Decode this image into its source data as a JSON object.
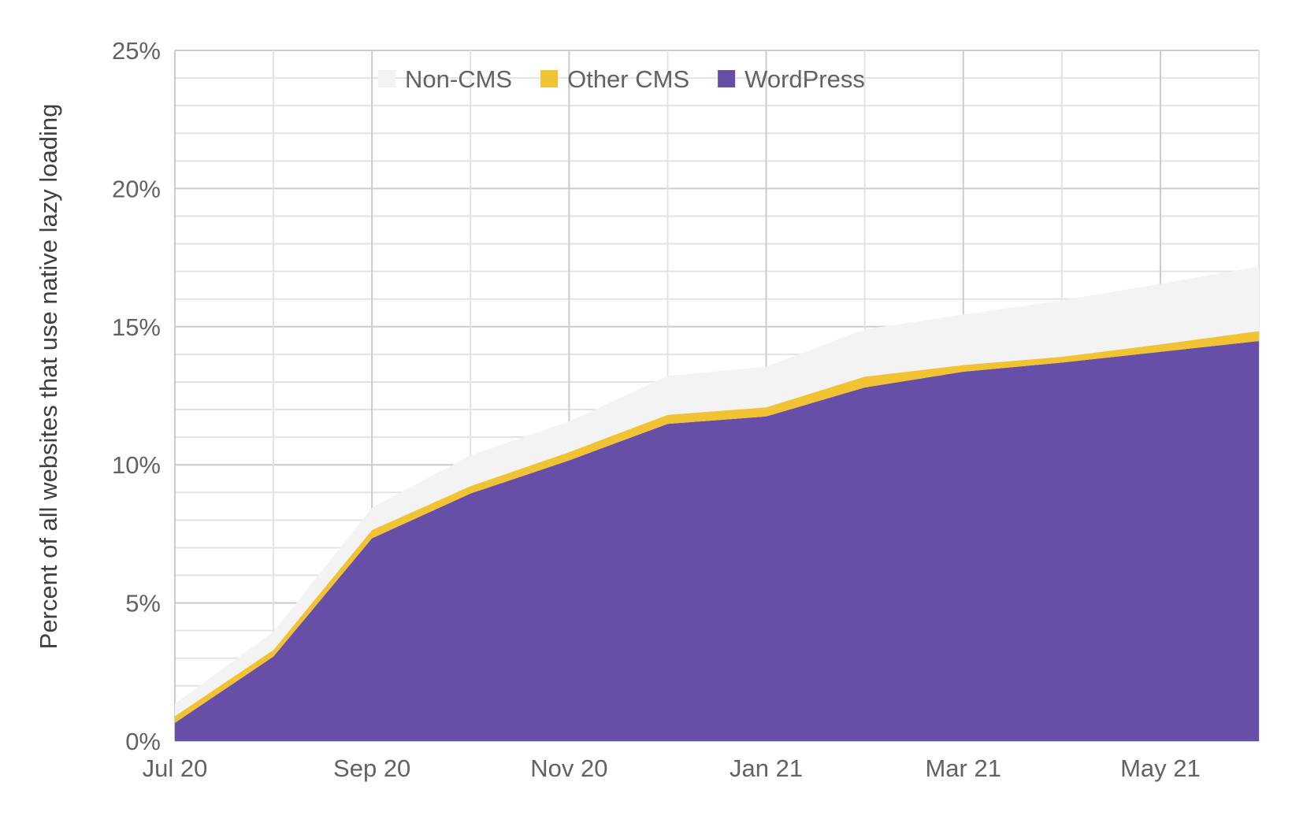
{
  "chart_data": {
    "type": "area",
    "stacked": true,
    "title": "",
    "xlabel": "",
    "ylabel": "Percent of all websites that use native lazy loading",
    "ylim": [
      0,
      25
    ],
    "y_ticks": [
      "0%",
      "5%",
      "10%",
      "15%",
      "20%",
      "25%"
    ],
    "x": [
      "Jul 20",
      "Aug 20",
      "Sep 20",
      "Oct 20",
      "Nov 20",
      "Dec 20",
      "Jan 21",
      "Feb 21",
      "Mar 21",
      "Apr 21",
      "May 21",
      "Jun 21"
    ],
    "x_tick_labels": [
      "Jul 20",
      "Sep 20",
      "Nov 20",
      "Jan 21",
      "Mar 21",
      "May 21"
    ],
    "grid": true,
    "legend_position": "top",
    "series": [
      {
        "name": "WordPress",
        "color": "#674ea7",
        "values": [
          0.66,
          3.06,
          7.34,
          8.96,
          10.16,
          11.48,
          11.75,
          12.8,
          13.37,
          13.7,
          14.09,
          14.48
        ]
      },
      {
        "name": "Other CMS",
        "color": "#f1c232",
        "values": [
          0.24,
          0.24,
          0.3,
          0.27,
          0.3,
          0.33,
          0.33,
          0.39,
          0.24,
          0.21,
          0.27,
          0.36
        ]
      },
      {
        "name": "Non-CMS",
        "color": "#f3f3f3",
        "values": [
          0.45,
          0.66,
          0.81,
          1.11,
          1.11,
          1.41,
          1.47,
          1.71,
          1.83,
          2.04,
          2.19,
          2.34
        ]
      }
    ],
    "legend_order": [
      "Non-CMS",
      "Other CMS",
      "WordPress"
    ]
  }
}
